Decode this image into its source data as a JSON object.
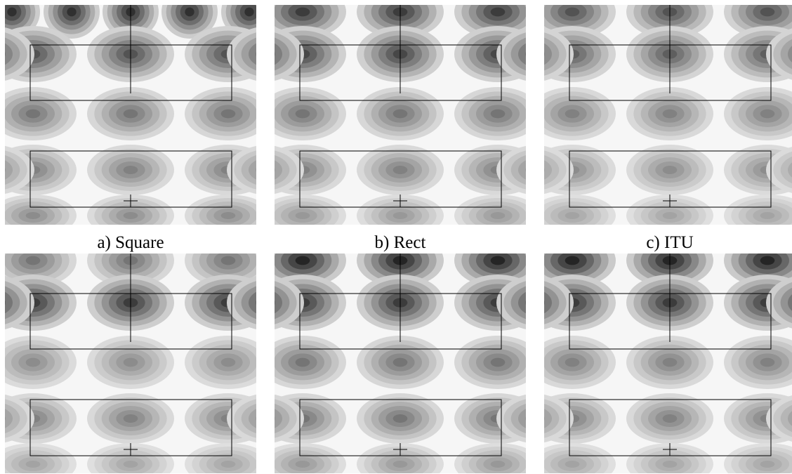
{
  "captions": {
    "a": "a) Square",
    "b": "b) Rect",
    "c": "c) ITU"
  },
  "field_rows": [
    [
      {
        "lobes": 5,
        "rows": [
          0.9,
          0.75,
          0.6,
          0.55,
          0.5
        ]
      },
      {
        "lobes": 3,
        "rows": [
          0.85,
          0.8,
          0.6,
          0.55,
          0.45
        ]
      },
      {
        "lobes": 3,
        "rows": [
          0.75,
          0.7,
          0.55,
          0.5,
          0.4
        ]
      }
    ],
    [
      {
        "lobes": 3,
        "rows": [
          0.6,
          0.85,
          0.5,
          0.55,
          0.4
        ]
      },
      {
        "lobes": 3,
        "rows": [
          0.95,
          0.85,
          0.6,
          0.6,
          0.45
        ]
      },
      {
        "lobes": 3,
        "rows": [
          0.95,
          0.85,
          0.55,
          0.55,
          0.4
        ]
      }
    ]
  ]
}
